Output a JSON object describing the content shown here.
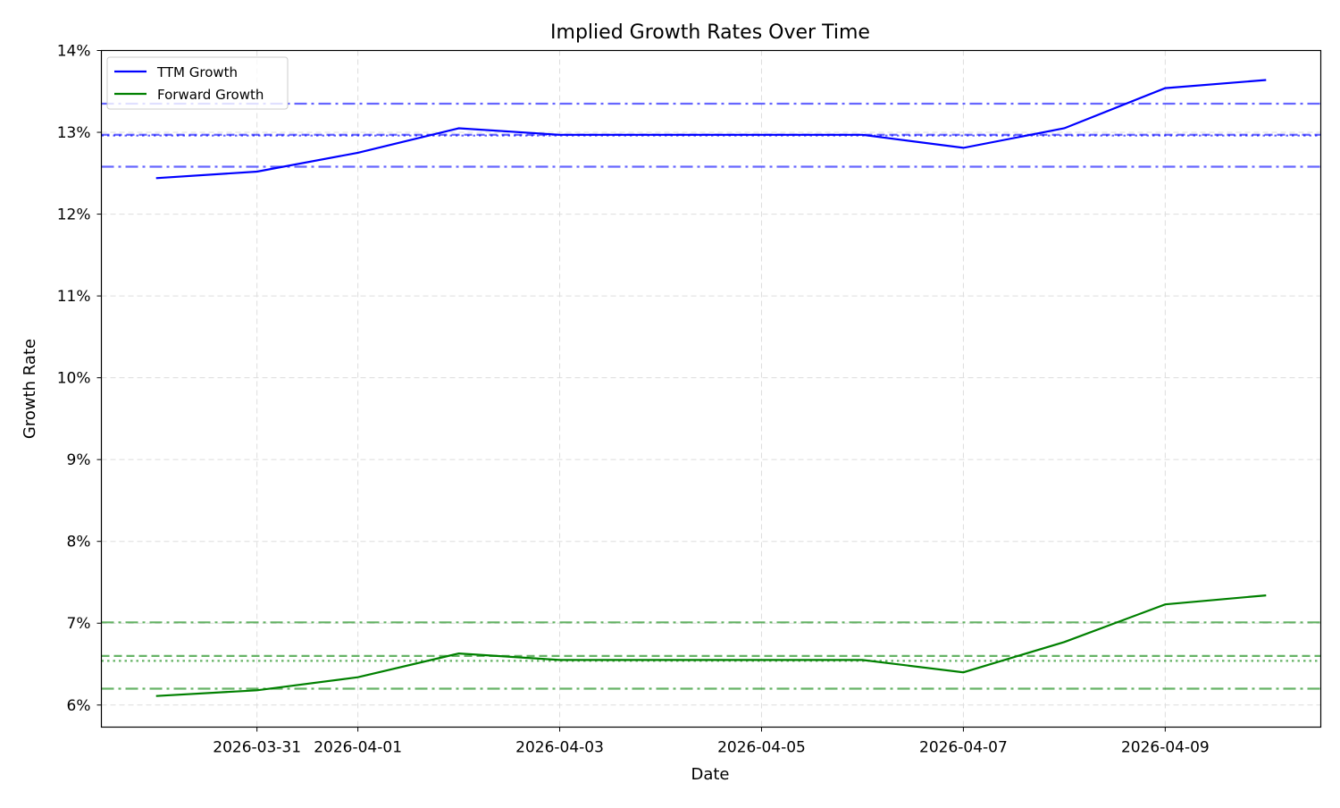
{
  "chart_data": {
    "type": "line",
    "title": "Implied Growth Rates Over Time",
    "xlabel": "Date",
    "ylabel": "Growth Rate",
    "x": [
      "2026-03-30",
      "2026-03-31",
      "2026-04-01",
      "2026-04-02",
      "2026-04-03",
      "2026-04-04",
      "2026-04-05",
      "2026-04-06",
      "2026-04-07",
      "2026-04-08",
      "2026-04-09",
      "2026-04-10"
    ],
    "xticks": [
      "2026-03-31",
      "2026-04-01",
      "2026-04-03",
      "2026-04-05",
      "2026-04-07",
      "2026-04-09"
    ],
    "xlim": [
      "2026-03-29 11:00",
      "2026-04-10 13:00"
    ],
    "ylim": [
      5.73,
      14.0
    ],
    "yticks": [
      6,
      7,
      8,
      9,
      10,
      11,
      12,
      13,
      14
    ],
    "ytick_labels": [
      "6%",
      "7%",
      "8%",
      "9%",
      "10%",
      "11%",
      "12%",
      "13%",
      "14%"
    ],
    "grid": true,
    "legend_position": "top-left",
    "series": [
      {
        "name": "TTM Growth",
        "color": "#0000ff",
        "values": [
          12.44,
          12.52,
          12.75,
          13.05,
          12.97,
          12.97,
          12.97,
          12.97,
          12.81,
          13.05,
          13.54,
          13.64
        ]
      },
      {
        "name": "Forward Growth",
        "color": "#008000",
        "values": [
          6.11,
          6.18,
          6.34,
          6.63,
          6.55,
          6.55,
          6.55,
          6.55,
          6.4,
          6.77,
          7.23,
          7.34
        ]
      }
    ],
    "reference_lines": [
      {
        "color": "#0000ff",
        "style": "dashdot",
        "value": 13.35
      },
      {
        "color": "#0000ff",
        "style": "dashed",
        "value": 12.97
      },
      {
        "color": "#0000ff",
        "style": "dotted",
        "value": 12.96
      },
      {
        "color": "#0000ff",
        "style": "dashdot",
        "value": 12.58
      },
      {
        "color": "#008000",
        "style": "dashdot",
        "value": 7.01
      },
      {
        "color": "#008000",
        "style": "dashed",
        "value": 6.6
      },
      {
        "color": "#008000",
        "style": "dotted",
        "value": 6.54
      },
      {
        "color": "#008000",
        "style": "dashdot",
        "value": 6.2
      }
    ]
  }
}
